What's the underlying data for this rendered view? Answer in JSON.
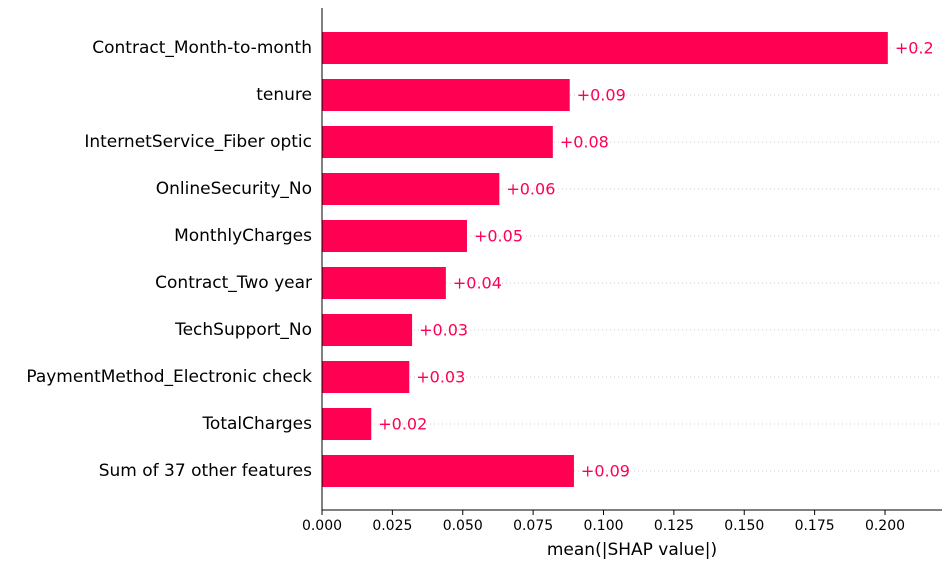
{
  "chart_data": {
    "type": "bar",
    "orientation": "horizontal",
    "categories": [
      "Contract_Month-to-month",
      "tenure",
      "InternetService_Fiber optic",
      "OnlineSecurity_No",
      "MonthlyCharges",
      "Contract_Two year",
      "TechSupport_No",
      "PaymentMethod_Electronic check",
      "TotalCharges",
      "Sum of 37 other features"
    ],
    "values": [
      0.201,
      0.088,
      0.082,
      0.063,
      0.0515,
      0.044,
      0.032,
      0.031,
      0.0175,
      0.0895
    ],
    "value_labels": [
      "+0.2",
      "+0.09",
      "+0.08",
      "+0.06",
      "+0.05",
      "+0.04",
      "+0.03",
      "+0.03",
      "+0.02",
      "+0.09"
    ],
    "xlabel": "mean(|SHAP value|)",
    "ylabel": "",
    "title": "",
    "xlim": [
      0,
      0.222
    ],
    "xticks": [
      0.0,
      0.025,
      0.05,
      0.075,
      0.1,
      0.125,
      0.15,
      0.175,
      0.2
    ],
    "xtick_labels": [
      "0.000",
      "0.025",
      "0.050",
      "0.075",
      "0.100",
      "0.125",
      "0.150",
      "0.175",
      "0.200"
    ],
    "grid": "horizontal-dotted",
    "legend": "none",
    "bar_color": "#ff0052",
    "label_color": "#ff0052",
    "gridline_color": "#cccccc"
  }
}
